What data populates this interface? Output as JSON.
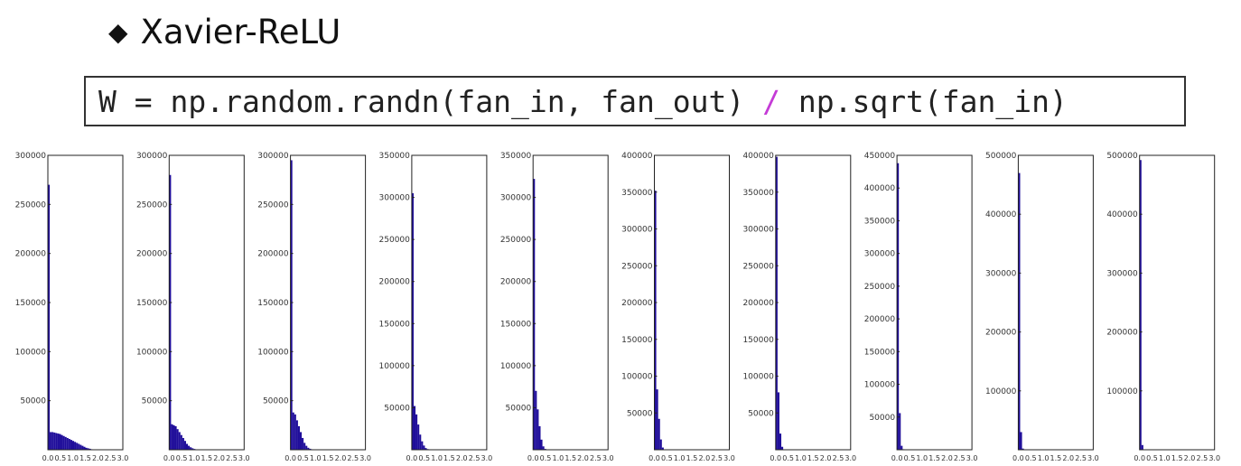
{
  "heading": {
    "bullet": "◆",
    "text": "Xavier-ReLU"
  },
  "code": {
    "before": "W = np.random.randn(fan_in, fan_out) ",
    "operator": "/",
    "after": " np.sqrt(fan_in)"
  },
  "colors": {
    "bar": "#1f0d9a",
    "operator": "#c43bd6"
  },
  "chart_data": [
    {
      "type": "bar",
      "xlim": [
        0.0,
        3.0
      ],
      "ylim": [
        0,
        300000
      ],
      "yticks": [
        50000,
        100000,
        150000,
        200000,
        250000,
        300000
      ],
      "xticks": [
        "0.0",
        "0.5",
        "1.0",
        "1.5",
        "2.0",
        "2.5",
        "3.0"
      ],
      "values": [
        270000,
        18000,
        18000,
        17500,
        17000,
        16500,
        16000,
        15000,
        14000,
        13000,
        12000,
        11000,
        10000,
        9000,
        8000,
        7000,
        6000,
        5000,
        4000,
        3000,
        2000,
        1500,
        1000,
        500
      ]
    },
    {
      "type": "bar",
      "xlim": [
        0.0,
        3.0
      ],
      "ylim": [
        0,
        300000
      ],
      "yticks": [
        50000,
        100000,
        150000,
        200000,
        250000,
        300000
      ],
      "xticks": [
        "0.0",
        "0.5",
        "1.0",
        "1.5",
        "2.0",
        "2.5",
        "3.0"
      ],
      "values": [
        280000,
        26000,
        25000,
        24000,
        21000,
        18000,
        15000,
        12000,
        9000,
        6000,
        4000,
        2500,
        1500,
        800,
        400
      ]
    },
    {
      "type": "bar",
      "xlim": [
        0.0,
        3.0
      ],
      "ylim": [
        0,
        300000
      ],
      "yticks": [
        50000,
        100000,
        150000,
        200000,
        250000,
        300000
      ],
      "xticks": [
        "0.0",
        "0.5",
        "1.0",
        "1.5",
        "2.0",
        "2.5",
        "3.0"
      ],
      "values": [
        295000,
        38000,
        36000,
        30000,
        24000,
        18000,
        12000,
        7000,
        4000,
        2000,
        1000,
        500
      ]
    },
    {
      "type": "bar",
      "xlim": [
        0.0,
        3.0
      ],
      "ylim": [
        0,
        350000
      ],
      "yticks": [
        50000,
        100000,
        150000,
        200000,
        250000,
        300000,
        350000
      ],
      "xticks": [
        "0.0",
        "0.5",
        "1.0",
        "1.5",
        "2.0",
        "2.5",
        "3.0"
      ],
      "values": [
        305000,
        52000,
        42000,
        30000,
        18000,
        10000,
        5000,
        2000,
        800
      ]
    },
    {
      "type": "bar",
      "xlim": [
        0.0,
        3.0
      ],
      "ylim": [
        0,
        350000
      ],
      "yticks": [
        50000,
        100000,
        150000,
        200000,
        250000,
        300000,
        350000
      ],
      "xticks": [
        "0.0",
        "0.5",
        "1.0",
        "1.5",
        "2.0",
        "2.5",
        "3.0"
      ],
      "values": [
        322000,
        70000,
        48000,
        28000,
        12000,
        4000,
        1000
      ]
    },
    {
      "type": "bar",
      "xlim": [
        0.0,
        3.0
      ],
      "ylim": [
        0,
        400000
      ],
      "yticks": [
        50000,
        100000,
        150000,
        200000,
        250000,
        300000,
        350000,
        400000
      ],
      "xticks": [
        "0.0",
        "0.5",
        "1.0",
        "1.5",
        "2.0",
        "2.5",
        "3.0"
      ],
      "values": [
        352000,
        82000,
        42000,
        14000,
        3000,
        500
      ]
    },
    {
      "type": "bar",
      "xlim": [
        0.0,
        3.0
      ],
      "ylim": [
        0,
        400000
      ],
      "yticks": [
        50000,
        100000,
        150000,
        200000,
        250000,
        300000,
        350000,
        400000
      ],
      "xticks": [
        "0.0",
        "0.5",
        "1.0",
        "1.5",
        "2.0",
        "2.5",
        "3.0"
      ],
      "values": [
        398000,
        78000,
        22000,
        4000,
        500
      ]
    },
    {
      "type": "bar",
      "xlim": [
        0.0,
        3.0
      ],
      "ylim": [
        0,
        450000
      ],
      "yticks": [
        50000,
        100000,
        150000,
        200000,
        250000,
        300000,
        350000,
        400000,
        450000
      ],
      "xticks": [
        "0.0",
        "0.5",
        "1.0",
        "1.5",
        "2.0",
        "2.5",
        "3.0"
      ],
      "values": [
        438000,
        56000,
        6000,
        800
      ]
    },
    {
      "type": "bar",
      "xlim": [
        0.0,
        3.0
      ],
      "ylim": [
        0,
        500000
      ],
      "yticks": [
        100000,
        200000,
        300000,
        400000,
        500000
      ],
      "xticks": [
        "0.0",
        "0.5",
        "1.0",
        "1.5",
        "2.0",
        "2.5",
        "3.0"
      ],
      "values": [
        470000,
        30000,
        2000
      ]
    },
    {
      "type": "bar",
      "xlim": [
        0.0,
        3.0
      ],
      "ylim": [
        0,
        500000
      ],
      "yticks": [
        100000,
        200000,
        300000,
        400000,
        500000
      ],
      "xticks": [
        "0.0",
        "0.5",
        "1.0",
        "1.5",
        "2.0",
        "2.5",
        "3.0"
      ],
      "values": [
        492000,
        8000
      ]
    }
  ]
}
